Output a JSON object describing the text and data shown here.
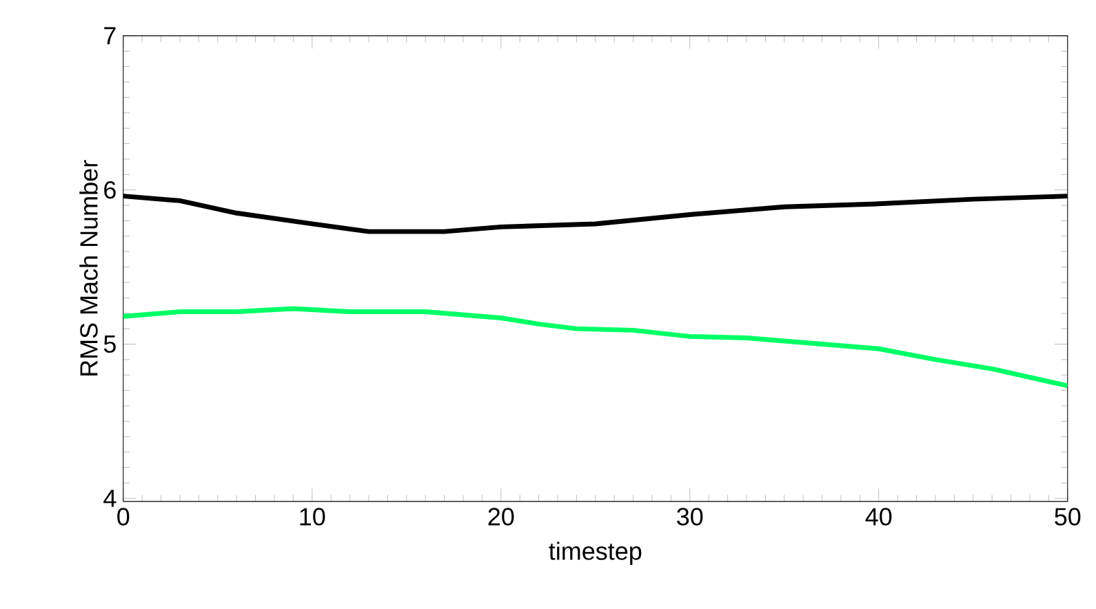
{
  "chart_data": {
    "type": "line",
    "xlabel": "timestep",
    "ylabel": "RMS Mach Number",
    "xlim": [
      0,
      50
    ],
    "ylim": [
      3.98,
      7
    ],
    "xticks": [
      0,
      10,
      20,
      30,
      40,
      50
    ],
    "yticks": [
      4,
      5,
      6,
      7
    ],
    "marker": "none",
    "line_style": "solid",
    "series": [
      {
        "color": "#000000",
        "x": [
          0,
          3,
          6,
          10,
          13,
          17,
          20,
          25,
          30,
          35,
          40,
          45,
          50
        ],
        "values": [
          5.96,
          5.93,
          5.85,
          5.78,
          5.73,
          5.73,
          5.76,
          5.78,
          5.84,
          5.89,
          5.91,
          5.94,
          5.96
        ]
      },
      {
        "color": "#00ff66",
        "x": [
          0,
          3,
          6,
          9,
          12,
          16,
          20,
          22,
          24,
          27,
          30,
          33,
          36,
          40,
          43,
          46,
          50
        ],
        "values": [
          5.18,
          5.21,
          5.21,
          5.23,
          5.21,
          5.21,
          5.17,
          5.13,
          5.1,
          5.09,
          5.05,
          5.04,
          5.01,
          4.97,
          4.9,
          4.84,
          4.73
        ]
      }
    ]
  }
}
